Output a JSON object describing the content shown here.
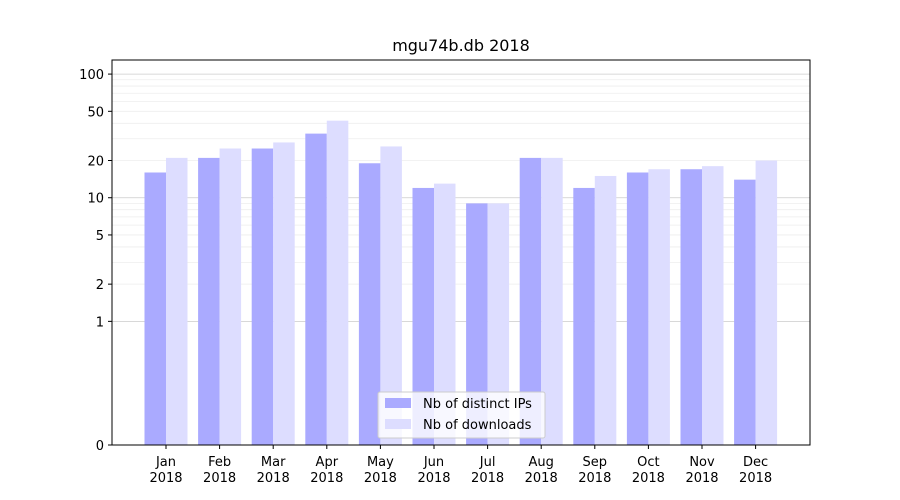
{
  "chart_data": {
    "type": "bar",
    "title": "mgu74b.db 2018",
    "xlabel": "",
    "ylabel": "",
    "yscale": "symlog",
    "ylim": [
      0,
      130
    ],
    "yticks": [
      0,
      1,
      2,
      5,
      10,
      20,
      50,
      100
    ],
    "grid": "y-major-and-minor",
    "legend_position": "bottom-center",
    "categories": [
      [
        "Jan",
        "2018"
      ],
      [
        "Feb",
        "2018"
      ],
      [
        "Mar",
        "2018"
      ],
      [
        "Apr",
        "2018"
      ],
      [
        "May",
        "2018"
      ],
      [
        "Jun",
        "2018"
      ],
      [
        "Jul",
        "2018"
      ],
      [
        "Aug",
        "2018"
      ],
      [
        "Sep",
        "2018"
      ],
      [
        "Oct",
        "2018"
      ],
      [
        "Nov",
        "2018"
      ],
      [
        "Dec",
        "2018"
      ]
    ],
    "series": [
      {
        "name": "Nb of distinct IPs",
        "color": "#aaaaff",
        "values": [
          16,
          21,
          25,
          33,
          19,
          12,
          9,
          21,
          12,
          16,
          17,
          14
        ]
      },
      {
        "name": "Nb of downloads",
        "color": "#ddddff",
        "values": [
          21,
          25,
          28,
          42,
          26,
          13,
          9,
          21,
          15,
          17,
          18,
          20
        ]
      }
    ]
  }
}
